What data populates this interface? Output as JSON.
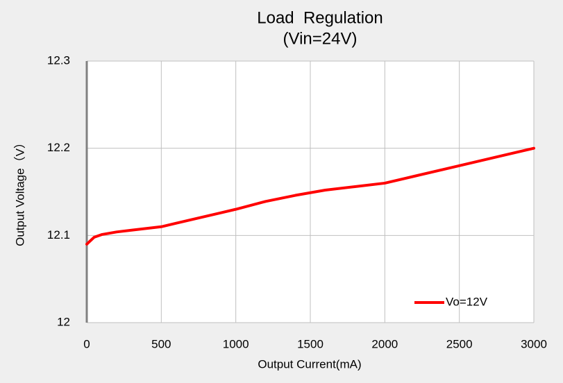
{
  "chart_data": {
    "type": "line",
    "title": "Load  Regulation",
    "subtitle": "(Vin=24V)",
    "x_label": "Output Current(mA)",
    "y_label": "Output Voltage（V）",
    "x": [
      0,
      50,
      100,
      200,
      300,
      400,
      500,
      600,
      700,
      800,
      900,
      1000,
      1200,
      1400,
      1500,
      1600,
      1800,
      2000,
      2200,
      2500,
      2800,
      3000
    ],
    "series": [
      {
        "name": "Vo=12V",
        "color": "#ff0000",
        "values": [
          12.09,
          12.098,
          12.101,
          12.104,
          12.106,
          12.108,
          12.11,
          12.114,
          12.118,
          12.122,
          12.126,
          12.13,
          12.139,
          12.146,
          12.149,
          12.152,
          12.156,
          12.16,
          12.168,
          12.18,
          12.192,
          12.2
        ]
      }
    ],
    "xlim": [
      0,
      3000
    ],
    "xticks": [
      0,
      500,
      1000,
      1500,
      2000,
      2500,
      3000
    ],
    "ylim": [
      12,
      12.3
    ],
    "yticks": [
      12,
      12.1,
      12.2,
      12.3
    ],
    "grid": true,
    "legend": "lower right"
  }
}
